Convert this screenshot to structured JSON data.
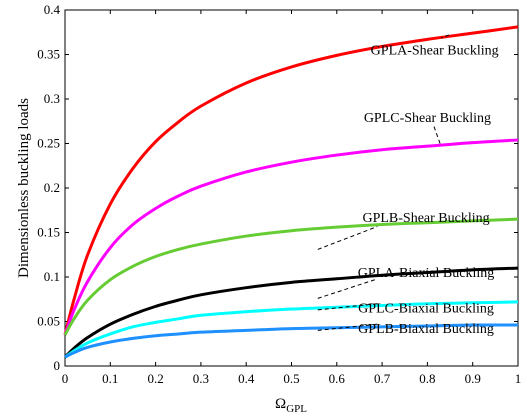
{
  "chart_data": {
    "type": "line",
    "xlabel": "Ω",
    "xlabel_sub": "GPL",
    "ylabel": "Dimensionless buckling loads",
    "xlim": [
      0,
      1
    ],
    "ylim": [
      0,
      0.4
    ],
    "x_ticks": [
      0,
      0.1,
      0.2,
      0.3,
      0.4,
      0.5,
      0.6,
      0.7,
      0.8,
      0.9,
      1
    ],
    "x_tick_labels": [
      "0",
      "0.1",
      "0.2",
      "0.3",
      "0.4",
      "0.5",
      "0.6",
      "0.7",
      "0.8",
      "0.9",
      "1"
    ],
    "y_ticks": [
      0,
      0.05,
      0.1,
      0.15,
      0.2,
      0.25,
      0.3,
      0.35,
      0.4
    ],
    "y_tick_labels": [
      "0",
      "0.05",
      "0.1",
      "0.15",
      "0.2",
      "0.25",
      "0.3",
      "0.35",
      "0.4"
    ],
    "grid": false,
    "x": [
      0,
      0.02,
      0.05,
      0.1,
      0.15,
      0.2,
      0.25,
      0.3,
      0.4,
      0.5,
      0.6,
      0.7,
      0.8,
      0.9,
      1.0
    ],
    "series": [
      {
        "name": "GPLA-Shear Buckling",
        "color": "#ff0000",
        "values": [
          0.035,
          0.075,
          0.125,
          0.182,
          0.222,
          0.252,
          0.274,
          0.292,
          0.318,
          0.336,
          0.349,
          0.359,
          0.367,
          0.374,
          0.381
        ]
      },
      {
        "name": "GPLC-Shear Buckling",
        "color": "#ff00ff",
        "values": [
          0.035,
          0.063,
          0.095,
          0.133,
          0.159,
          0.177,
          0.191,
          0.202,
          0.218,
          0.229,
          0.237,
          0.243,
          0.247,
          0.251,
          0.254
        ]
      },
      {
        "name": "GPLB-Shear Buckling",
        "color": "#66cc33",
        "values": [
          0.035,
          0.053,
          0.074,
          0.097,
          0.112,
          0.123,
          0.131,
          0.137,
          0.146,
          0.152,
          0.156,
          0.159,
          0.161,
          0.163,
          0.165
        ]
      },
      {
        "name": "GPLA-Biaxial Buckling",
        "color": "#000000",
        "values": [
          0.01,
          0.02,
          0.032,
          0.047,
          0.058,
          0.067,
          0.074,
          0.08,
          0.088,
          0.094,
          0.098,
          0.102,
          0.105,
          0.108,
          0.11
        ]
      },
      {
        "name": "GPLC-Biaxial Buckling",
        "color": "#00ffff",
        "values": [
          0.01,
          0.017,
          0.026,
          0.036,
          0.044,
          0.049,
          0.053,
          0.057,
          0.061,
          0.064,
          0.066,
          0.068,
          0.07,
          0.071,
          0.072
        ]
      },
      {
        "name": "GPLB-Biaxial Buckling",
        "color": "#1e90ff",
        "values": [
          0.01,
          0.015,
          0.021,
          0.027,
          0.031,
          0.034,
          0.036,
          0.038,
          0.04,
          0.042,
          0.043,
          0.044,
          0.045,
          0.046,
          0.046
        ]
      }
    ],
    "annotations": [
      {
        "text": "GPLA-Shear Buckling",
        "x": 0.816,
        "y": 0.35,
        "arrow_to": [
          0.848,
          0.372
        ]
      },
      {
        "text": "GPLC-Shear Buckling",
        "x": 0.8,
        "y": 0.274,
        "arrow_to": [
          0.828,
          0.25
        ]
      },
      {
        "text": "GPLB-Shear Buckling",
        "x": 0.797,
        "y": 0.162,
        "arrow_to": [
          0.558,
          0.131
        ]
      },
      {
        "text": "GPLA-Biaxial Buckling",
        "x": 0.797,
        "y": 0.1,
        "arrow_to": [
          0.558,
          0.076
        ]
      },
      {
        "text": "GPLC-Biaxial Buckling",
        "x": 0.797,
        "y": 0.06,
        "arrow_to": [
          0.558,
          0.063
        ]
      },
      {
        "text": "GPLB-Biaxial Buckling",
        "x": 0.797,
        "y": 0.037,
        "arrow_to": [
          0.558,
          0.04
        ]
      }
    ]
  }
}
